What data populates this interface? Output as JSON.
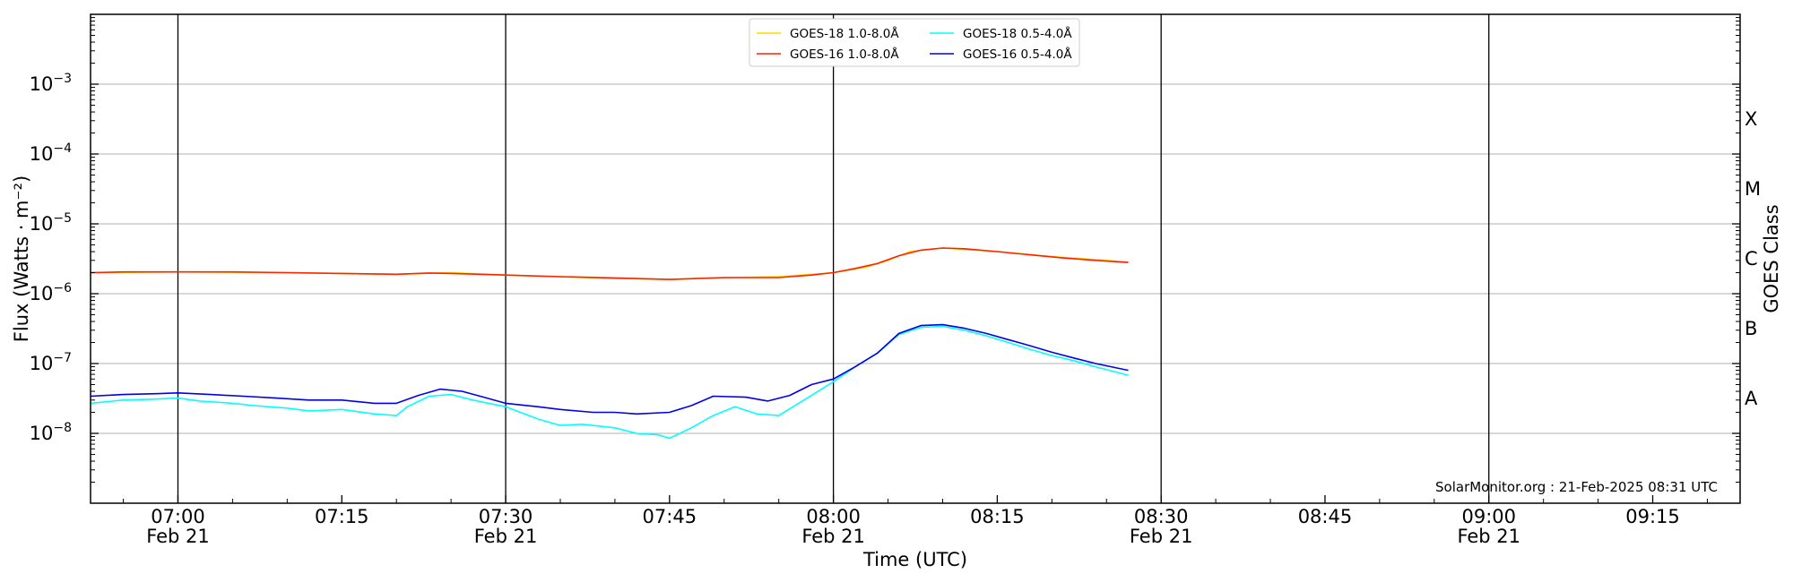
{
  "chart_data": {
    "type": "line",
    "xlabel": "Time (UTC)",
    "ylabel": "Flux (Watts · m⁻²)",
    "y2label": "GOES Class",
    "scale_y": "log",
    "ylim": [
      1e-09,
      0.01
    ],
    "xlim": [
      "06:52",
      "09:23"
    ],
    "grid": "horizontal",
    "legend_position": "top-center",
    "credit": "SolarMonitor.org : 21-Feb-2025 08:31 UTC",
    "x_ticks": [
      {
        "t": "07:00",
        "time": "07:00",
        "date": "Feb 21"
      },
      {
        "t": "07:15",
        "time": "07:15",
        "date": ""
      },
      {
        "t": "07:30",
        "time": "07:30",
        "date": "Feb 21"
      },
      {
        "t": "07:45",
        "time": "07:45",
        "date": ""
      },
      {
        "t": "08:00",
        "time": "08:00",
        "date": "Feb 21"
      },
      {
        "t": "08:15",
        "time": "08:15",
        "date": ""
      },
      {
        "t": "08:30",
        "time": "08:30",
        "date": "Feb 21"
      },
      {
        "t": "08:45",
        "time": "08:45",
        "date": ""
      },
      {
        "t": "09:00",
        "time": "09:00",
        "date": "Feb 21"
      },
      {
        "t": "09:15",
        "time": "09:15",
        "date": ""
      }
    ],
    "y_ticks": [
      {
        "value": 1e-08,
        "base": "10",
        "exp": "−8"
      },
      {
        "value": 1e-07,
        "base": "10",
        "exp": "−7"
      },
      {
        "value": 1e-06,
        "base": "10",
        "exp": "−6"
      },
      {
        "value": 1e-05,
        "base": "10",
        "exp": "−5"
      },
      {
        "value": 0.0001,
        "base": "10",
        "exp": "−4"
      },
      {
        "value": 0.001,
        "base": "10",
        "exp": "−3"
      }
    ],
    "goes_classes": [
      {
        "label": "A",
        "value": 3.16e-08
      },
      {
        "label": "B",
        "value": 3.16e-07
      },
      {
        "label": "C",
        "value": 3.16e-06
      },
      {
        "label": "M",
        "value": 3.16e-05
      },
      {
        "label": "X",
        "value": 0.000316
      }
    ],
    "legend": [
      {
        "name": "GOES-18 1.0-8.0Å",
        "color": "#ffd700"
      },
      {
        "name": "GOES-16 1.0-8.0Å",
        "color": "#ff2200"
      },
      {
        "name": "GOES-18 0.5-4.0Å",
        "color": "#00ffff"
      },
      {
        "name": "GOES-16 0.5-4.0Å",
        "color": "#0000ee"
      }
    ],
    "series": [
      {
        "name": "GOES-18 1.0-8.0Å",
        "color": "#ffd700",
        "x": [
          "06:52",
          "07:00",
          "07:10",
          "07:20",
          "07:25",
          "07:30",
          "07:40",
          "07:45",
          "07:50",
          "07:55",
          "08:00",
          "08:03",
          "08:05",
          "08:07",
          "08:10",
          "08:15",
          "08:20",
          "08:25",
          "08:27"
        ],
        "y": [
          2e-06,
          2.05e-06,
          2e-06,
          1.9e-06,
          2e-06,
          1.85e-06,
          1.65e-06,
          1.6e-06,
          1.7e-06,
          1.75e-06,
          2e-06,
          2.4e-06,
          3e-06,
          4e-06,
          4.5e-06,
          4e-06,
          3.4e-06,
          3e-06,
          2.8e-06
        ]
      },
      {
        "name": "GOES-16 1.0-8.0Å",
        "color": "#ff2200",
        "x": [
          "06:52",
          "06:55",
          "07:00",
          "07:05",
          "07:10",
          "07:15",
          "07:20",
          "07:23",
          "07:25",
          "07:30",
          "07:35",
          "07:40",
          "07:45",
          "07:50",
          "07:55",
          "07:58",
          "08:00",
          "08:02",
          "08:04",
          "08:06",
          "08:08",
          "08:10",
          "08:12",
          "08:15",
          "08:18",
          "08:21",
          "08:24",
          "08:27"
        ],
        "y": [
          2e-06,
          2.05e-06,
          2.05e-06,
          2.05e-06,
          2e-06,
          1.95e-06,
          1.9e-06,
          1.98e-06,
          1.95e-06,
          1.85e-06,
          1.75e-06,
          1.68e-06,
          1.6e-06,
          1.7e-06,
          1.7e-06,
          1.85e-06,
          2e-06,
          2.3e-06,
          2.7e-06,
          3.5e-06,
          4.2e-06,
          4.5e-06,
          4.4e-06,
          4e-06,
          3.6e-06,
          3.25e-06,
          3e-06,
          2.8e-06
        ]
      },
      {
        "name": "GOES-18 0.5-4.0Å",
        "color": "#00ffff",
        "x": [
          "06:52",
          "06:55",
          "06:58",
          "07:00",
          "07:02",
          "07:05",
          "07:07",
          "07:10",
          "07:12",
          "07:15",
          "07:18",
          "07:20",
          "07:21",
          "07:23",
          "07:25",
          "07:27",
          "07:30",
          "07:33",
          "07:35",
          "07:37",
          "07:40",
          "07:42",
          "07:44",
          "07:45",
          "07:47",
          "07:49",
          "07:51",
          "07:53",
          "07:55",
          "07:58",
          "08:00",
          "08:02",
          "08:04",
          "08:06",
          "08:08",
          "08:10",
          "08:12",
          "08:14",
          "08:16",
          "08:18",
          "08:20",
          "08:22",
          "08:24",
          "08:27"
        ],
        "y": [
          2.7e-08,
          3e-08,
          3.1e-08,
          3.2e-08,
          2.9e-08,
          2.7e-08,
          2.5e-08,
          2.3e-08,
          2.1e-08,
          2.2e-08,
          1.9e-08,
          1.8e-08,
          2.4e-08,
          3.4e-08,
          3.6e-08,
          3e-08,
          2.4e-08,
          1.6e-08,
          1.3e-08,
          1.35e-08,
          1.2e-08,
          1e-08,
          9.5e-09,
          8.5e-09,
          1.2e-08,
          1.8e-08,
          2.4e-08,
          1.9e-08,
          1.8e-08,
          3.5e-08,
          5.5e-08,
          9e-08,
          1.4e-07,
          2.6e-07,
          3.3e-07,
          3.4e-07,
          3e-07,
          2.5e-07,
          2e-07,
          1.6e-07,
          1.3e-07,
          1.1e-07,
          9e-08,
          6.8e-08
        ]
      },
      {
        "name": "GOES-16 0.5-4.0Å",
        "color": "#0000ee",
        "x": [
          "06:52",
          "06:55",
          "06:58",
          "07:00",
          "07:03",
          "07:06",
          "07:09",
          "07:12",
          "07:15",
          "07:18",
          "07:20",
          "07:22",
          "07:24",
          "07:26",
          "07:28",
          "07:30",
          "07:33",
          "07:35",
          "07:38",
          "07:40",
          "07:42",
          "07:45",
          "07:47",
          "07:49",
          "07:52",
          "07:54",
          "07:56",
          "07:58",
          "08:00",
          "08:02",
          "08:04",
          "08:06",
          "08:08",
          "08:10",
          "08:12",
          "08:14",
          "08:16",
          "08:18",
          "08:20",
          "08:22",
          "08:24",
          "08:27"
        ],
        "y": [
          3.4e-08,
          3.6e-08,
          3.7e-08,
          3.8e-08,
          3.6e-08,
          3.4e-08,
          3.2e-08,
          3e-08,
          3e-08,
          2.7e-08,
          2.7e-08,
          3.5e-08,
          4.3e-08,
          4e-08,
          3.3e-08,
          2.7e-08,
          2.4e-08,
          2.2e-08,
          2e-08,
          2e-08,
          1.9e-08,
          2e-08,
          2.5e-08,
          3.4e-08,
          3.3e-08,
          2.9e-08,
          3.5e-08,
          5e-08,
          6e-08,
          9e-08,
          1.4e-07,
          2.7e-07,
          3.5e-07,
          3.6e-07,
          3.2e-07,
          2.7e-07,
          2.2e-07,
          1.8e-07,
          1.45e-07,
          1.2e-07,
          1e-07,
          8e-08
        ]
      }
    ]
  }
}
